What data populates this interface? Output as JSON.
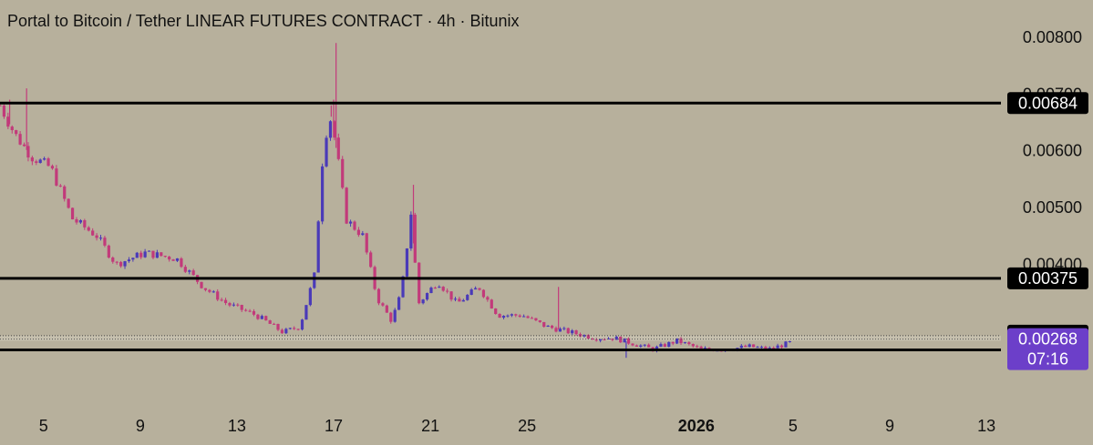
{
  "chart_data": {
    "type": "candlestick",
    "title": "Portal to Bitcoin / Tether LINEAR FUTURES CONTRACT · 4h · Bitunix",
    "y_axis": {
      "ticks": [
        0.004,
        0.005,
        0.006,
        0.007,
        0.008
      ],
      "tick_labels": [
        "0.00400",
        "0.00500",
        "0.00600",
        "0.00700",
        "0.00800"
      ],
      "range": [
        0.002,
        0.0083
      ]
    },
    "x_axis": {
      "ticks": [
        {
          "label": "5",
          "day": 5
        },
        {
          "label": "9",
          "day": 9
        },
        {
          "label": "13",
          "day": 13
        },
        {
          "label": "17",
          "day": 17
        },
        {
          "label": "21",
          "day": 21
        },
        {
          "label": "25",
          "day": 25
        },
        {
          "label": "2026",
          "day": 32,
          "bold": true
        },
        {
          "label": "5",
          "day": 36
        },
        {
          "label": "9",
          "day": 40
        },
        {
          "label": "13",
          "day": 44
        }
      ],
      "range": [
        3.2,
        44.6
      ]
    },
    "levels": [
      {
        "value": 0.00684,
        "label": "0.00684",
        "style": "solid"
      },
      {
        "value": 0.00375,
        "label": "0.00375",
        "style": "solid"
      },
      {
        "value": 0.00274,
        "label": "0.00274",
        "style": "dotted"
      },
      {
        "value": 0.00249,
        "label": "0.00249",
        "style": "solid"
      }
    ],
    "current_price": {
      "value": 0.00268,
      "label": "0.00268",
      "countdown": "07:16",
      "color": "#6c3fc9"
    },
    "colors": {
      "up": "#4a3ab8",
      "down": "#c23a7a",
      "level": "#000000"
    },
    "path": [
      [
        3.2,
        0.0068
      ],
      [
        3.8,
        0.0063
      ],
      [
        4.5,
        0.0059
      ],
      [
        5.3,
        0.0057
      ],
      [
        6.2,
        0.0048
      ],
      [
        7.2,
        0.0045
      ],
      [
        8.0,
        0.004
      ],
      [
        9.2,
        0.0042
      ],
      [
        10.5,
        0.0041
      ],
      [
        11.6,
        0.0036
      ],
      [
        12.6,
        0.0033
      ],
      [
        13.8,
        0.0031
      ],
      [
        14.9,
        0.0028
      ],
      [
        15.6,
        0.0029
      ],
      [
        16.2,
        0.0038
      ],
      [
        16.6,
        0.0062
      ],
      [
        16.9,
        0.0066
      ],
      [
        17.3,
        0.0055
      ],
      [
        17.5,
        0.0048
      ],
      [
        18.2,
        0.0045
      ],
      [
        18.8,
        0.0034
      ],
      [
        19.4,
        0.003
      ],
      [
        19.8,
        0.0035
      ],
      [
        20.2,
        0.0049
      ],
      [
        20.5,
        0.0033
      ],
      [
        21.3,
        0.0037
      ],
      [
        22.1,
        0.0033
      ],
      [
        23.0,
        0.0036
      ],
      [
        23.8,
        0.0031
      ],
      [
        24.8,
        0.0031
      ],
      [
        25.8,
        0.0029
      ],
      [
        26.8,
        0.0028
      ],
      [
        27.8,
        0.0027
      ],
      [
        28.6,
        0.0027
      ],
      [
        29.4,
        0.0026
      ],
      [
        30.2,
        0.0025
      ],
      [
        31.2,
        0.00265
      ],
      [
        32.2,
        0.0025
      ],
      [
        33.2,
        0.0025
      ],
      [
        34.2,
        0.00255
      ],
      [
        35.0,
        0.0025
      ],
      [
        35.9,
        0.00262
      ],
      [
        36.0,
        0.00268
      ]
    ],
    "spikes": [
      [
        3.6,
        0.0069
      ],
      [
        4.3,
        0.0071
      ],
      [
        16.9,
        0.0068
      ],
      [
        17.0,
        0.0069
      ],
      [
        17.1,
        0.0079
      ],
      [
        20.3,
        0.0054
      ],
      [
        26.3,
        0.0036
      ],
      [
        29.1,
        0.00235
      ]
    ]
  }
}
